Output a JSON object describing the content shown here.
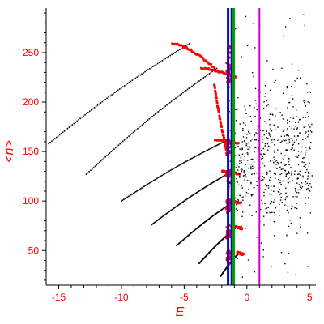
{
  "chart_data": {
    "type": "scatter",
    "xlabel": "E",
    "ylabel": "<n>",
    "xlim": [
      -16,
      5.5
    ],
    "ylim": [
      15,
      295
    ],
    "x_ticks": [
      -15,
      -10,
      -5,
      0,
      5
    ],
    "x_tick_labels": [
      "-15",
      "-10",
      "-5",
      "0",
      "5"
    ],
    "y_ticks": [
      50,
      100,
      150,
      200,
      250
    ],
    "y_tick_labels": [
      "50",
      "100",
      "150",
      "200",
      "250"
    ],
    "grid": false,
    "colors": {
      "axes": "#000000",
      "labels": "#ff0000",
      "series_black": "#000000",
      "series_red": "#ff0000",
      "line_navy": "#0b0bbf",
      "line_blue": "#0000ff",
      "line_green": "#00a000",
      "line_magenta": "#cc00cc"
    },
    "vertical_lines": [
      {
        "x": -1.5,
        "color": "#0b0bbf"
      },
      {
        "x": -1.2,
        "color": "#0000ff"
      },
      {
        "x": -1.05,
        "color": "#00a000"
      },
      {
        "x": 1.0,
        "color": "#cc00cc"
      }
    ],
    "bands": [
      {
        "x0": -15.8,
        "y0": 158,
        "xpeak": -4.6,
        "ypeak": 259,
        "xend": -2.4,
        "yend": 232
      },
      {
        "x0": -12.8,
        "y0": 127,
        "xpeak": -2.4,
        "ypeak": 234,
        "xend": -0.9,
        "yend": 225
      },
      {
        "x0": -10.0,
        "y0": 100,
        "xpeak": -1.5,
        "ypeak": 162,
        "xend": -0.7,
        "yend": 158
      },
      {
        "x0": -7.6,
        "y0": 76,
        "xpeak": -1.2,
        "ypeak": 130,
        "xend": -0.6,
        "yend": 127
      },
      {
        "x0": -5.6,
        "y0": 55,
        "xpeak": -1.0,
        "ypeak": 100,
        "xend": -0.5,
        "yend": 98
      },
      {
        "x0": -3.8,
        "y0": 37,
        "xpeak": -0.8,
        "ypeak": 74,
        "xend": -0.4,
        "yend": 72
      },
      {
        "x0": -2.1,
        "y0": 24,
        "xpeak": -0.6,
        "ypeak": 48,
        "xend": -0.3,
        "yend": 46
      }
    ],
    "scatter_cloud": {
      "x_range": [
        -1.5,
        5.2
      ],
      "y_range": [
        20,
        290
      ],
      "count": 650,
      "seed": 7
    }
  }
}
